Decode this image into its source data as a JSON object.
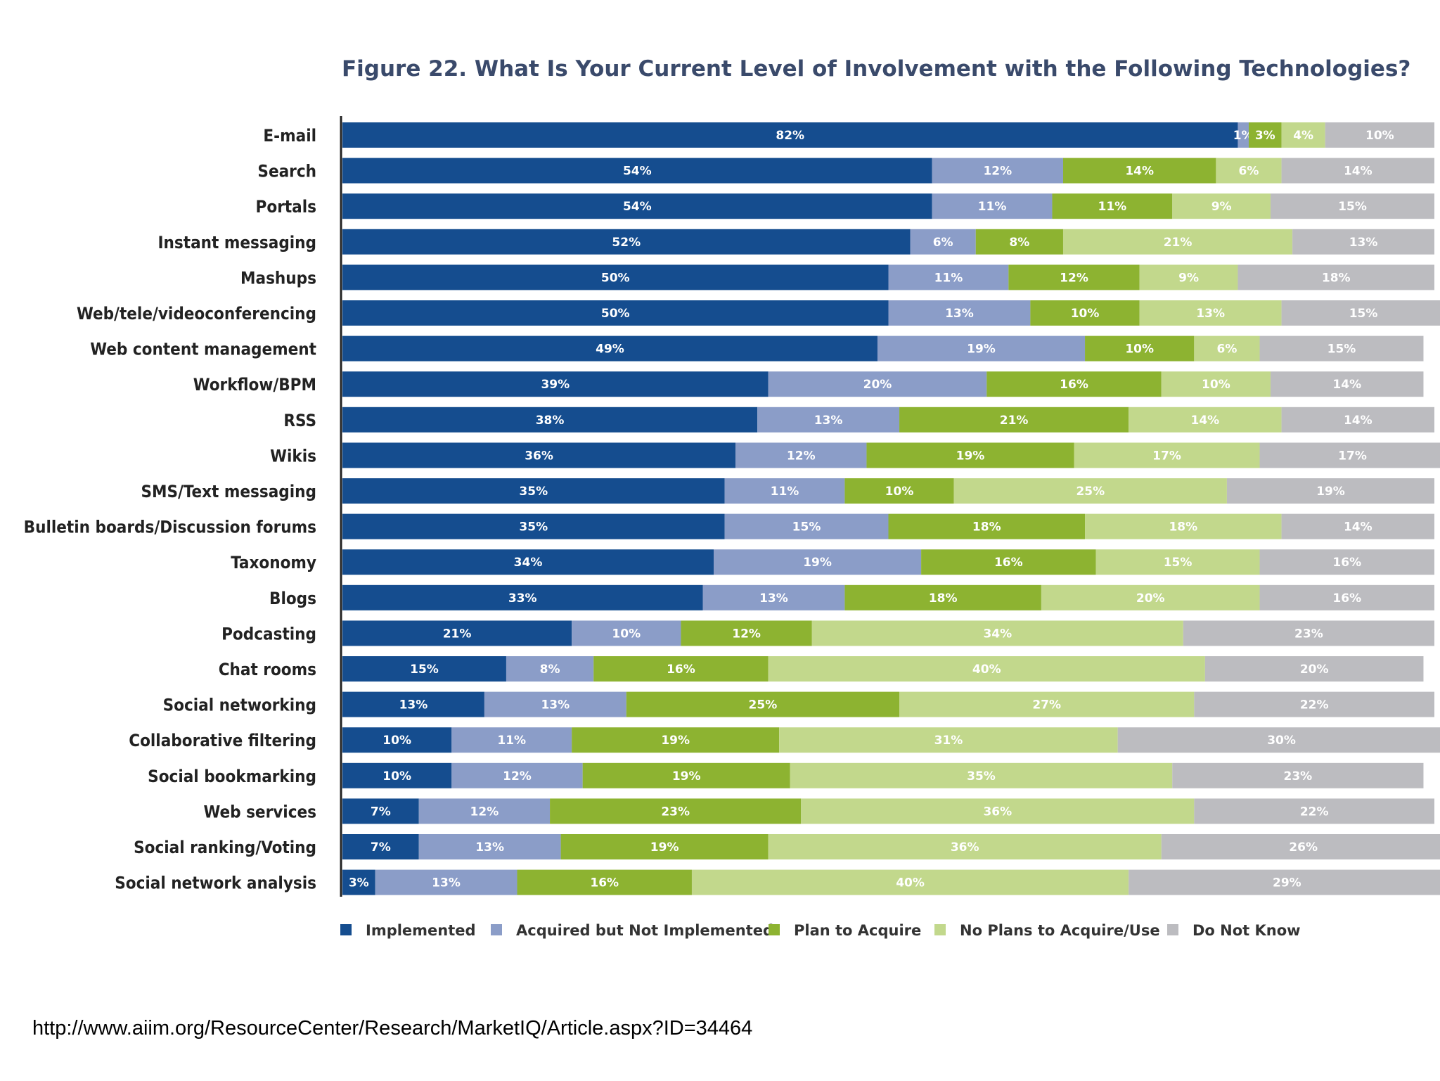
{
  "source_url": "http://www.aiim.org/ResourceCenter/Research/MarketIQ/Article.aspx?ID=34464",
  "colors": {
    "implemented": "#154d8f",
    "acquired": "#8b9dc8",
    "plan": "#8db331",
    "no_plans": "#c2d88c",
    "do_not_know": "#bcbcc0",
    "axis": "#222222",
    "title": "#3a4a6b"
  },
  "chart_data": {
    "type": "bar",
    "orientation": "horizontal-stacked-100",
    "title": "Figure 22. What Is Your Current Level of Involvement with the Following Technologies?",
    "xlabel": "",
    "ylabel": "",
    "xlim": [
      0,
      100
    ],
    "grid": false,
    "legend_position": "bottom",
    "categories": [
      "E-mail",
      "Search",
      "Portals",
      "Instant messaging",
      "Mashups",
      "Web/tele/videoconferencing",
      "Web content management",
      "Workflow/BPM",
      "RSS",
      "Wikis",
      "SMS/Text messaging",
      "Bulletin boards/Discussion forums",
      "Taxonomy",
      "Blogs",
      "Podcasting",
      "Chat rooms",
      "Social networking",
      "Collaborative filtering",
      "Social bookmarking",
      "Web services",
      "Social ranking/Voting",
      "Social network analysis"
    ],
    "series": [
      {
        "name": "Implemented",
        "color_key": "implemented",
        "values": [
          82,
          54,
          54,
          52,
          50,
          50,
          49,
          39,
          38,
          36,
          35,
          35,
          34,
          33,
          21,
          15,
          13,
          10,
          10,
          7,
          7,
          3
        ],
        "labels": [
          "82%",
          "54%",
          "54%",
          "52%",
          "50%",
          "50%",
          "49%",
          "39%",
          "38%",
          "36%",
          "35%",
          "35%",
          "34%",
          "33%",
          "21%",
          "15%",
          "13%",
          "10%",
          "10%",
          "7%",
          "7%",
          "3%"
        ]
      },
      {
        "name": "Acquired but Not Implemented",
        "color_key": "acquired",
        "values": [
          1,
          12,
          11,
          6,
          11,
          13,
          19,
          20,
          13,
          12,
          11,
          15,
          19,
          13,
          10,
          8,
          13,
          11,
          12,
          12,
          13,
          13
        ],
        "labels": [
          "1%",
          "12%",
          "11%",
          "6%",
          "11%",
          "13%",
          "19%",
          "20%",
          "13%",
          "12%",
          "11%",
          "15%",
          "19%",
          "13%",
          "10%",
          "8%",
          "13%",
          "11%",
          "12%",
          "12%",
          "13%",
          "13%"
        ]
      },
      {
        "name": "Plan to Acquire",
        "color_key": "plan",
        "values": [
          3,
          14,
          11,
          8,
          12,
          10,
          10,
          16,
          21,
          19,
          10,
          18,
          16,
          18,
          12,
          16,
          25,
          19,
          19,
          23,
          19,
          16
        ],
        "labels": [
          "3%",
          "14%",
          "11%",
          "8%",
          "12%",
          "10%",
          "10%",
          "16%",
          "21%",
          "19%",
          "10%",
          "18%",
          "16%",
          "18%",
          "12%",
          "16%",
          "25%",
          "19%",
          "19%",
          "23%",
          "19%",
          "16%"
        ]
      },
      {
        "name": "No Plans to Acquire/Use",
        "color_key": "no_plans",
        "values": [
          4,
          6,
          9,
          21,
          9,
          13,
          6,
          10,
          14,
          17,
          25,
          18,
          15,
          20,
          34,
          40,
          27,
          31,
          35,
          36,
          36,
          40
        ],
        "labels": [
          "4%",
          "6%",
          "9%",
          "21%",
          "9%",
          "13%",
          "6%",
          "10%",
          "14%",
          "17%",
          "25%",
          "18%",
          "15%",
          "20%",
          "34%",
          "40%",
          "27%",
          "31%",
          "35%",
          "36%",
          "36%",
          "40%"
        ]
      },
      {
        "name": "Do Not Know",
        "color_key": "do_not_know",
        "values": [
          10,
          14,
          15,
          13,
          18,
          15,
          15,
          14,
          14,
          17,
          19,
          14,
          16,
          16,
          23,
          20,
          22,
          30,
          23,
          22,
          26,
          29
        ],
        "labels": [
          "10%",
          "14%",
          "15%",
          "13%",
          "18%",
          "15%",
          "15%",
          "14%",
          "14%",
          "17%",
          "19%",
          "14%",
          "16%",
          "16%",
          "23%",
          "20%",
          "22%",
          "30%",
          "23%",
          "22%",
          "26%",
          "29%"
        ]
      }
    ]
  }
}
